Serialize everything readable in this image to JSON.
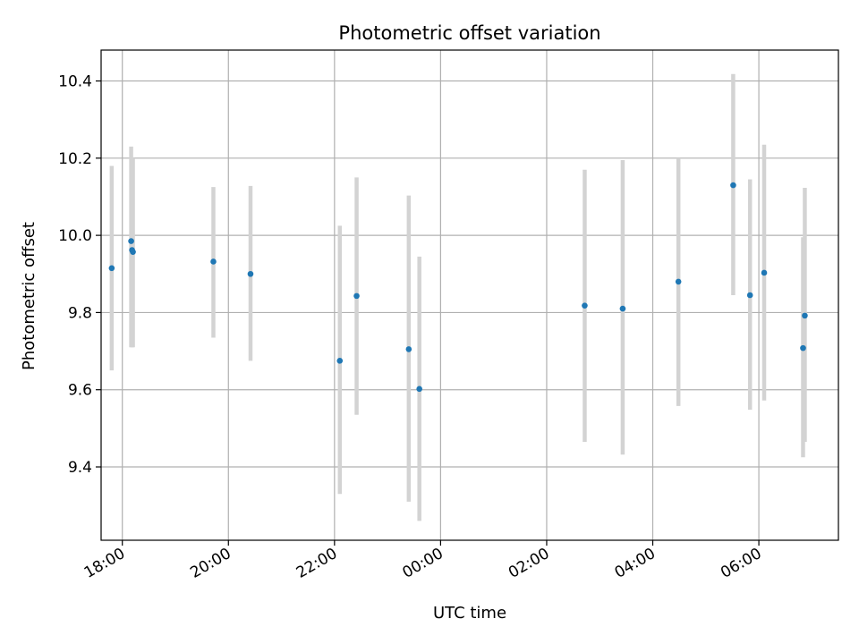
{
  "chart_data": {
    "type": "scatter",
    "title": "Photometric offset variation",
    "xlabel": "UTC time",
    "ylabel": "Photometric offset",
    "x_axis": {
      "type": "time",
      "start": "17:36",
      "end": "07:30",
      "ticks": [
        "18:00",
        "20:00",
        "22:00",
        "00:00",
        "02:00",
        "04:00",
        "06:00"
      ]
    },
    "ylim": [
      9.21,
      10.48
    ],
    "y_ticks": [
      "9.4",
      "9.6",
      "9.8",
      "10.0",
      "10.2",
      "10.4"
    ],
    "grid": true,
    "colors": {
      "point": "#1f77b4",
      "errorbar": "#d3d3d3",
      "grid": "#b0b0b0"
    },
    "points": [
      {
        "time": "17:48",
        "y": 9.915,
        "low": 9.65,
        "high": 10.18
      },
      {
        "time": "18:10",
        "y": 9.985,
        "low": 9.71,
        "high": 10.23
      },
      {
        "time": "18:11",
        "y": 9.962,
        "low": 9.71,
        "high": 10.2
      },
      {
        "time": "18:12",
        "y": 9.957,
        "low": 9.71,
        "high": 10.2
      },
      {
        "time": "19:43",
        "y": 9.932,
        "low": 9.735,
        "high": 10.125
      },
      {
        "time": "20:25",
        "y": 9.9,
        "low": 9.675,
        "high": 10.128
      },
      {
        "time": "22:06",
        "y": 9.675,
        "low": 9.33,
        "high": 10.025
      },
      {
        "time": "22:25",
        "y": 9.843,
        "low": 9.535,
        "high": 10.15
      },
      {
        "time": "23:24",
        "y": 9.705,
        "low": 9.31,
        "high": 10.103
      },
      {
        "time": "23:36",
        "y": 9.602,
        "low": 9.26,
        "high": 9.945
      },
      {
        "time": "02:43",
        "y": 9.818,
        "low": 9.465,
        "high": 10.17
      },
      {
        "time": "03:26",
        "y": 9.81,
        "low": 9.432,
        "high": 10.195
      },
      {
        "time": "04:29",
        "y": 9.88,
        "low": 9.558,
        "high": 10.2
      },
      {
        "time": "05:31",
        "y": 10.13,
        "low": 9.845,
        "high": 10.418
      },
      {
        "time": "05:50",
        "y": 9.845,
        "low": 9.548,
        "high": 10.145
      },
      {
        "time": "06:06",
        "y": 9.903,
        "low": 9.572,
        "high": 10.235
      },
      {
        "time": "06:50",
        "y": 9.708,
        "low": 9.425,
        "high": 9.995
      },
      {
        "time": "06:52",
        "y": 9.792,
        "low": 9.465,
        "high": 10.123
      }
    ]
  }
}
